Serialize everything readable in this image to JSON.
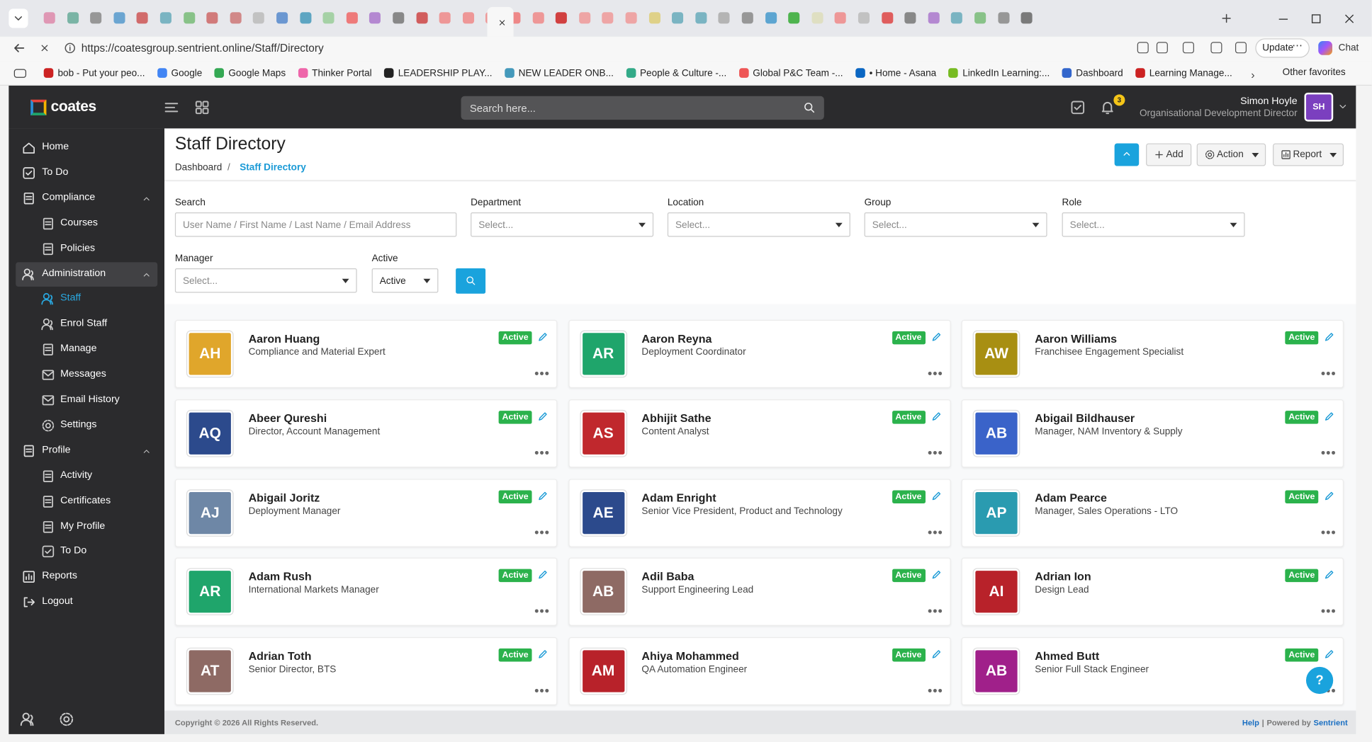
{
  "browser": {
    "url": "https://coatesgroup.sentrient.online/Staff/Directory",
    "update": "Update",
    "chat": "Chat",
    "bookmarks": [
      "bob - Put your peo...",
      "Google",
      "Google Maps",
      "Thinker Portal",
      "LEADERSHIP PLAY...",
      "NEW LEADER ONB...",
      "People & Culture -...",
      "Global P&C Team -...",
      "• Home - Asana",
      "LinkedIn Learning:...",
      "Dashboard",
      "Learning Manage..."
    ],
    "other_favorites": "Other favorites"
  },
  "header": {
    "logo": "coates",
    "search_placeholder": "Search here...",
    "notifications": 3,
    "user_name": "Simon Hoyle",
    "user_title": "Organisational Development Director",
    "user_initials": "SH"
  },
  "sidebar": {
    "items": [
      {
        "label": "Home"
      },
      {
        "label": "To Do"
      },
      {
        "label": "Compliance",
        "children": [
          {
            "label": "Courses"
          },
          {
            "label": "Policies"
          }
        ]
      },
      {
        "label": "Administration",
        "selected": true,
        "children": [
          {
            "label": "Staff",
            "active": true
          },
          {
            "label": "Enrol Staff"
          },
          {
            "label": "Manage"
          },
          {
            "label": "Messages"
          },
          {
            "label": "Email History"
          },
          {
            "label": "Settings"
          }
        ]
      },
      {
        "label": "Profile",
        "children": [
          {
            "label": "Activity"
          },
          {
            "label": "Certificates"
          },
          {
            "label": "My Profile"
          },
          {
            "label": "To Do"
          }
        ]
      },
      {
        "label": "Reports"
      },
      {
        "label": "Logout"
      }
    ]
  },
  "page": {
    "title": "Staff Directory",
    "breadcrumb": [
      "Dashboard",
      "Staff Directory"
    ],
    "buttons": [
      "Add",
      "Action",
      "Report"
    ]
  },
  "filters": [
    {
      "label": "Search",
      "placeholder": "User Name / First Name / Last Name /  Email Address"
    },
    {
      "label": "Department",
      "placeholder": "Select..."
    },
    {
      "label": "Location",
      "placeholder": "Select..."
    },
    {
      "label": "Group",
      "placeholder": "Select..."
    },
    {
      "label": "Role",
      "placeholder": "Select..."
    },
    {
      "label": "Manager",
      "placeholder": "Select..."
    },
    {
      "label": "Active",
      "value": "Active"
    }
  ],
  "staff": [
    {
      "initials": "AH",
      "name": "Aaron Huang",
      "role": "Compliance and Material Expert",
      "status": "Active",
      "color": "#e0a62b"
    },
    {
      "initials": "AR",
      "name": "Aaron Reyna",
      "role": "Deployment Coordinator",
      "status": "Active",
      "color": "#1fa56b"
    },
    {
      "initials": "AW",
      "name": "Aaron Williams",
      "role": "Franchisee Engagement Specialist",
      "status": "Active",
      "color": "#a88f12"
    },
    {
      "initials": "AQ",
      "name": "Abeer Qureshi",
      "role": "Director, Account Management",
      "status": "Active",
      "color": "#2c4a8c"
    },
    {
      "initials": "AS",
      "name": "Abhijit Sathe",
      "role": "Content Analyst",
      "status": "Active",
      "color": "#c0282d"
    },
    {
      "initials": "AB",
      "name": "Abigail Bildhauser",
      "role": "Manager, NAM Inventory & Supply",
      "status": "Active",
      "color": "#3a63c9"
    },
    {
      "initials": "AJ",
      "name": "Abigail Joritz",
      "role": "Deployment Manager",
      "status": "Active",
      "color": "#6e87a6"
    },
    {
      "initials": "AE",
      "name": "Adam Enright",
      "role": "Senior Vice President, Product and Technology",
      "status": "Active",
      "color": "#2c4a8c"
    },
    {
      "initials": "AP",
      "name": "Adam Pearce",
      "role": "Manager, Sales Operations - LTO",
      "status": "Active",
      "color": "#2a9bb0"
    },
    {
      "initials": "AR",
      "name": "Adam Rush",
      "role": "International Markets Manager",
      "status": "Active",
      "color": "#1fa56b"
    },
    {
      "initials": "AB",
      "name": "Adil Baba",
      "role": "Support Engineering Lead",
      "status": "Active",
      "color": "#8e6a64"
    },
    {
      "initials": "AI",
      "name": "Adrian Ion",
      "role": "Design Lead",
      "status": "Active",
      "color": "#b8222a"
    },
    {
      "initials": "AT",
      "name": "Adrian Toth",
      "role": "Senior Director, BTS",
      "status": "Active",
      "color": "#8e6a64"
    },
    {
      "initials": "AM",
      "name": "Ahiya Mohammed",
      "role": "QA Automation Engineer",
      "status": "Active",
      "color": "#b8222a"
    },
    {
      "initials": "AB",
      "name": "Ahmed Butt",
      "role": "Senior Full Stack Engineer",
      "status": "Active",
      "color": "#a0208a"
    }
  ],
  "help_button": "?",
  "footer": {
    "copyright": "Copyright © 2026 All Rights Reserved.",
    "help": "Help",
    "separator": "|",
    "powered_by": "Powered by",
    "brand": "Sentrient"
  }
}
